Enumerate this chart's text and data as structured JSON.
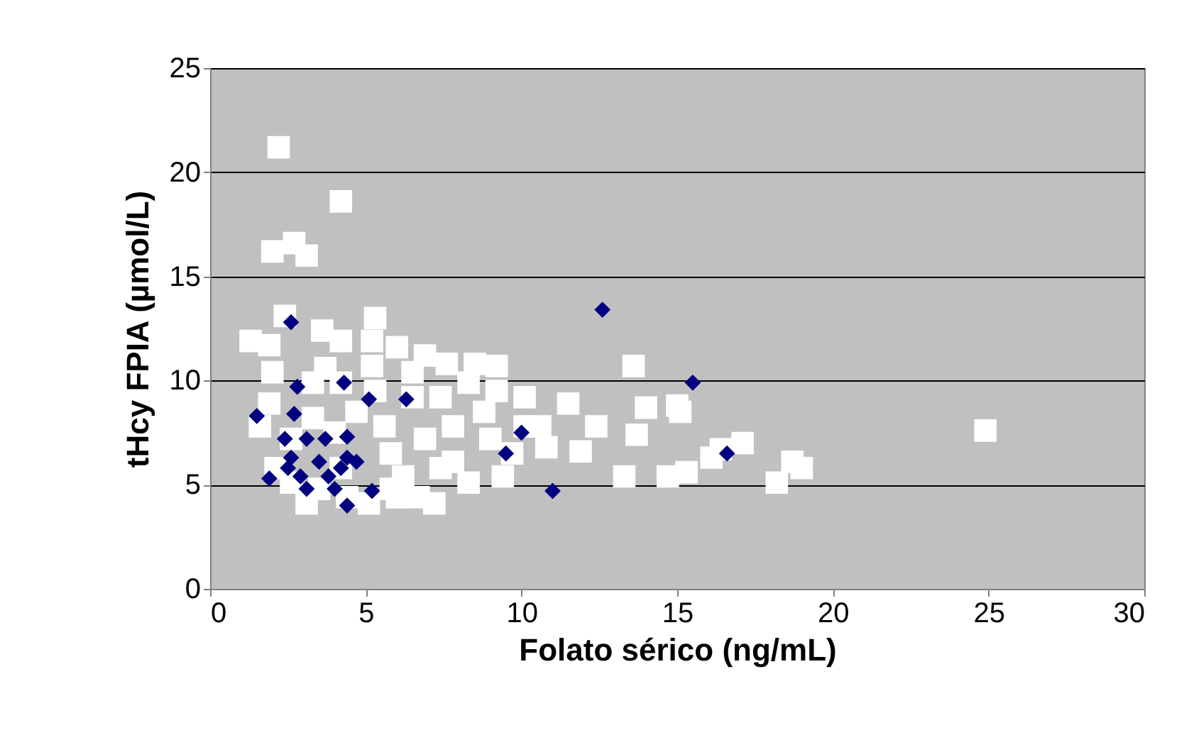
{
  "chart_data": {
    "type": "scatter",
    "xlabel": "Folato sérico (ng/mL)",
    "ylabel": "tHcy FPIA (µmol/L)",
    "xlim": [
      0,
      30
    ],
    "xticks": [
      0,
      5,
      10,
      15,
      20,
      25,
      30
    ],
    "ylim": [
      0,
      25
    ],
    "yticks": [
      0,
      5,
      10,
      15,
      20,
      25
    ],
    "grid": "y",
    "series": [
      {
        "color": "#ffffff",
        "marker": "square",
        "x": [
          2.2,
          4.2,
          2.0,
          2.7,
          3.1,
          2.4,
          5.3,
          1.3,
          1.9,
          3.6,
          4.2,
          5.2,
          6.0,
          6.9,
          7.6,
          8.5,
          2.0,
          3.7,
          5.2,
          6.5,
          8.3,
          9.2,
          10.1,
          11.5,
          13.6,
          14.0,
          15.0,
          15.1,
          10.6,
          12.4,
          13.7,
          10.8,
          11.9,
          13.3,
          14.7,
          15.3,
          16.1,
          17.1,
          18.2,
          18.7,
          19.0,
          24.9,
          16.4,
          1.6,
          1.9,
          2.1,
          2.6,
          3.3,
          4.0,
          4.7,
          5.6,
          5.8,
          6.2,
          6.7,
          7.2,
          6.9,
          7.8,
          8.8,
          9.0,
          8.3,
          9.4,
          9.7,
          7.4,
          5.1,
          4.4,
          6.0,
          4.2,
          6.5,
          7.4,
          5.3,
          2.6,
          3.1,
          3.5,
          5.8,
          7.8,
          3.3,
          4.2,
          9.2,
          10.1
        ],
        "values": [
          21.2,
          18.6,
          16.2,
          16.6,
          16.0,
          13.1,
          13.0,
          11.9,
          11.7,
          12.4,
          11.9,
          11.9,
          11.6,
          11.2,
          10.8,
          10.8,
          10.4,
          10.6,
          10.7,
          10.4,
          9.9,
          9.5,
          9.2,
          8.9,
          10.7,
          8.7,
          8.8,
          8.5,
          7.8,
          7.8,
          7.4,
          6.8,
          6.6,
          5.4,
          5.4,
          5.6,
          6.3,
          7.0,
          5.1,
          6.1,
          5.8,
          7.6,
          6.7,
          7.8,
          8.9,
          5.8,
          7.2,
          8.2,
          7.5,
          8.5,
          7.8,
          6.5,
          5.4,
          4.4,
          4.1,
          7.2,
          7.8,
          8.5,
          7.2,
          5.1,
          5.4,
          6.5,
          5.8,
          4.1,
          4.4,
          4.4,
          5.8,
          9.2,
          9.2,
          9.5,
          5.1,
          4.1,
          4.8,
          4.8,
          6.1,
          9.9,
          9.9,
          10.7,
          7.8
        ]
      },
      {
        "color": "#000080",
        "marker": "diamond",
        "x": [
          2.6,
          12.6,
          15.5,
          16.6,
          11.0,
          9.5,
          10.0,
          4.3,
          2.8,
          5.1,
          6.3,
          1.5,
          2.7,
          1.9,
          2.4,
          3.1,
          3.7,
          4.4,
          4.4,
          2.6,
          3.5,
          2.9,
          3.1,
          4.0,
          3.8,
          4.2,
          4.7,
          4.4,
          5.2,
          2.5
        ],
        "values": [
          12.8,
          13.4,
          9.9,
          6.5,
          4.7,
          6.5,
          7.5,
          9.9,
          9.7,
          9.1,
          9.1,
          8.3,
          8.4,
          5.3,
          7.2,
          7.2,
          7.2,
          7.3,
          6.3,
          6.3,
          6.1,
          5.4,
          4.8,
          4.8,
          5.4,
          5.8,
          6.1,
          4.0,
          4.7,
          5.8
        ]
      }
    ]
  }
}
